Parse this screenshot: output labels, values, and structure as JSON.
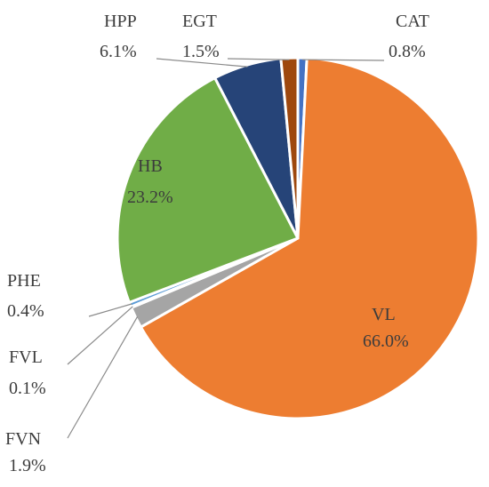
{
  "chart_data": {
    "type": "pie",
    "start_angle_deg": 0,
    "direction": "clockwise",
    "slices": [
      {
        "label": "CAT",
        "value": 0.8,
        "value_label": "0.8%",
        "color": "#4472c4"
      },
      {
        "label": "VL",
        "value": 66.0,
        "value_label": "66.0%",
        "color": "#ed7d31"
      },
      {
        "label": "FVN",
        "value": 1.9,
        "value_label": "1.9%",
        "color": "#a5a5a5"
      },
      {
        "label": "FVL",
        "value": 0.1,
        "value_label": "0.1%",
        "color": "#ffc000"
      },
      {
        "label": "PHE",
        "value": 0.4,
        "value_label": "0.4%",
        "color": "#5b9bd5"
      },
      {
        "label": "HB",
        "value": 23.2,
        "value_label": "23.2%",
        "color": "#70ad47"
      },
      {
        "label": "HPP",
        "value": 6.1,
        "value_label": "6.1%",
        "color": "#264478"
      },
      {
        "label": "EGT",
        "value": 1.5,
        "value_label": "1.5%",
        "color": "#9e480e"
      }
    ]
  }
}
